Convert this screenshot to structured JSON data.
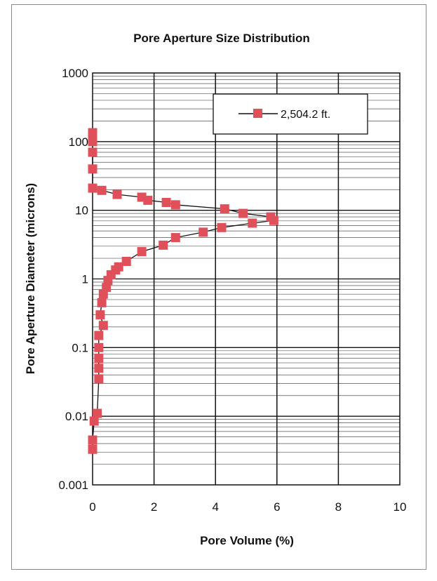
{
  "chart_data": {
    "type": "line",
    "title": "Pore Aperture Size Distribution",
    "xlabel": "Pore Volume (%)",
    "ylabel": "Pore Aperture Diameter (microns)",
    "xlim": [
      0,
      10
    ],
    "ylim": [
      0.001,
      1000
    ],
    "y_scale": "log",
    "x_ticks": [
      "0",
      "2",
      "4",
      "6",
      "8",
      "10"
    ],
    "y_ticks": [
      "1000",
      "100",
      "10",
      "1",
      "0.1",
      "0.01",
      "0.001"
    ],
    "grid": true,
    "legend_position": "top-right",
    "series": [
      {
        "name": "2,504.2 ft.",
        "color": "#e0505a",
        "marker": "square",
        "points": [
          [
            0.0,
            0.0033
          ],
          [
            0.0,
            0.0045
          ],
          [
            0.05,
            0.0085
          ],
          [
            0.15,
            0.011
          ],
          [
            0.2,
            0.035
          ],
          [
            0.2,
            0.05
          ],
          [
            0.2,
            0.07
          ],
          [
            0.2,
            0.1
          ],
          [
            0.2,
            0.15
          ],
          [
            0.35,
            0.21
          ],
          [
            0.25,
            0.3
          ],
          [
            0.3,
            0.45
          ],
          [
            0.35,
            0.6
          ],
          [
            0.45,
            0.75
          ],
          [
            0.5,
            0.95
          ],
          [
            0.6,
            1.15
          ],
          [
            0.75,
            1.35
          ],
          [
            0.85,
            1.5
          ],
          [
            1.1,
            1.8
          ],
          [
            1.6,
            2.5
          ],
          [
            2.3,
            3.1
          ],
          [
            2.7,
            4.0
          ],
          [
            3.6,
            4.8
          ],
          [
            4.2,
            5.6
          ],
          [
            5.2,
            6.5
          ],
          [
            5.9,
            7.1
          ],
          [
            5.8,
            8.0
          ],
          [
            4.9,
            9.0
          ],
          [
            4.3,
            10.5
          ],
          [
            2.7,
            12.0
          ],
          [
            2.4,
            13.0
          ],
          [
            1.8,
            14.0
          ],
          [
            1.6,
            15.5
          ],
          [
            0.8,
            17.0
          ],
          [
            0.3,
            19.5
          ],
          [
            0.0,
            21.0
          ],
          [
            0.0,
            40.0
          ],
          [
            0.0,
            70.0
          ],
          [
            0.0,
            100.0
          ],
          [
            0.0,
            135.0
          ]
        ]
      }
    ]
  }
}
